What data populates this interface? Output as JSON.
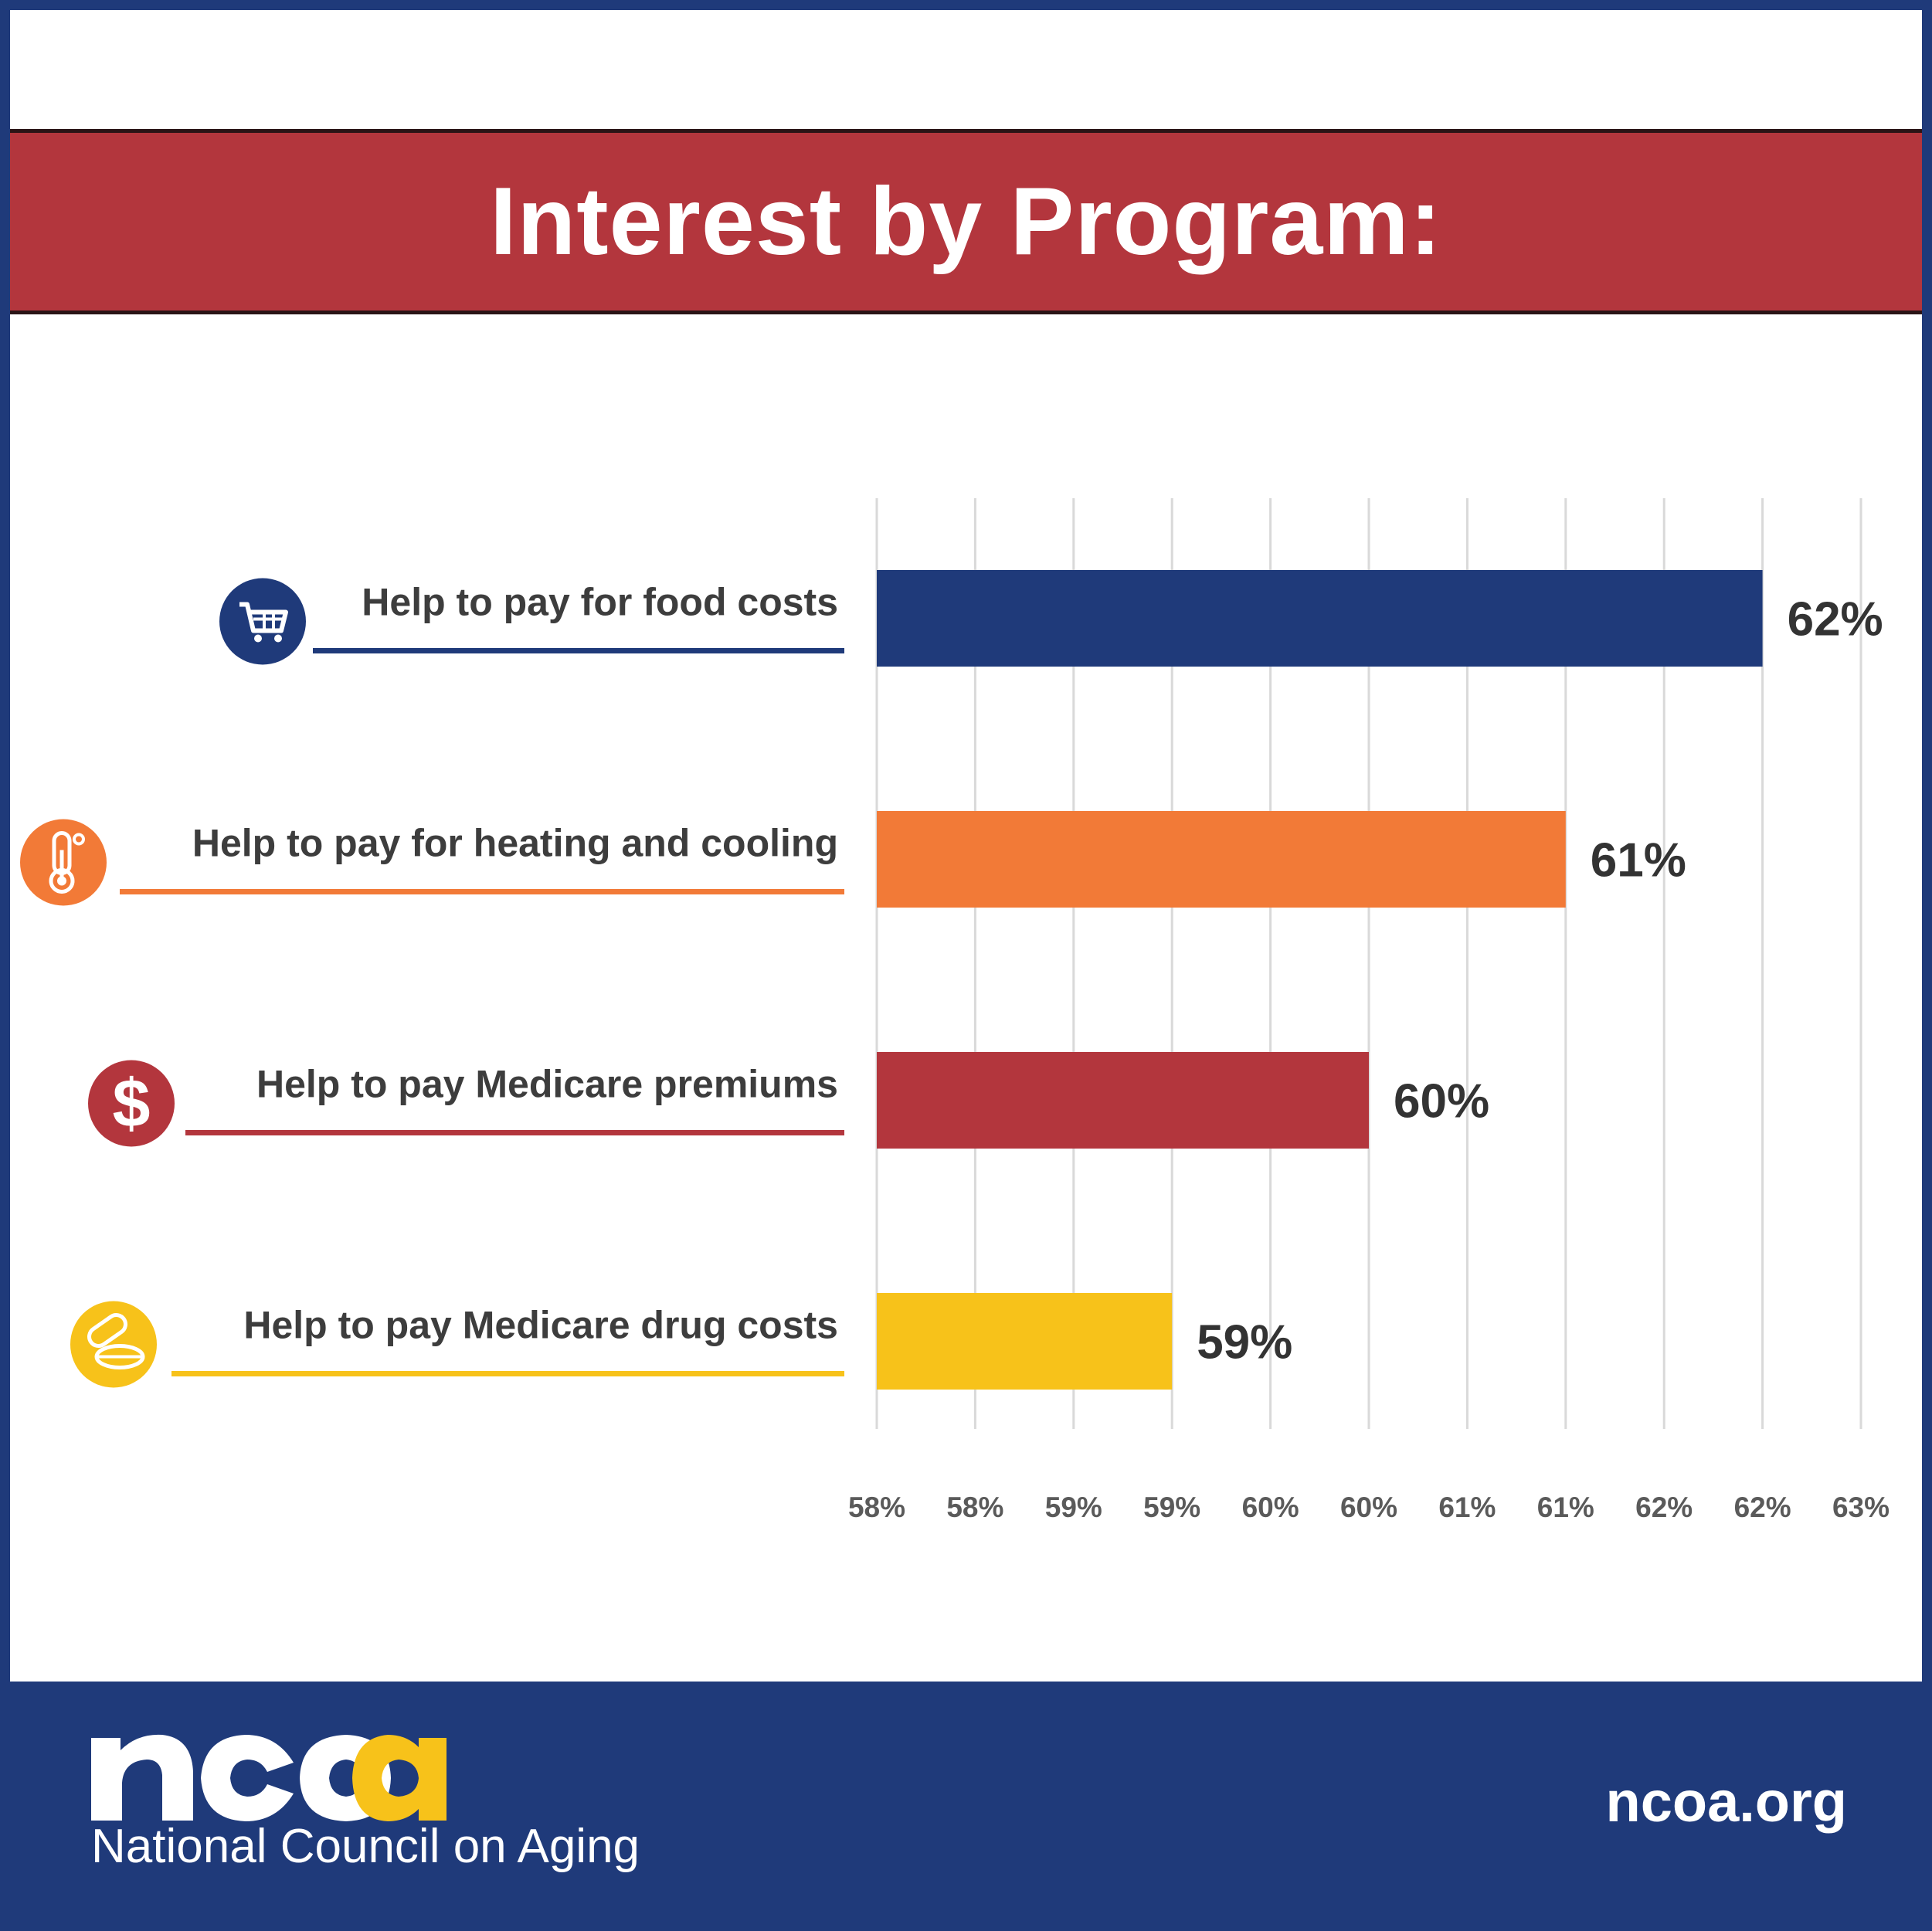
{
  "title": "Interest by Program:",
  "chart_data": {
    "type": "bar",
    "orientation": "horizontal",
    "categories": [
      "Help to pay for food costs",
      "Help to pay for heating and cooling",
      "Help to pay Medicare premiums",
      "Help to pay Medicare drug costs"
    ],
    "values": [
      62,
      61,
      60,
      59
    ],
    "value_labels": [
      "62%",
      "61%",
      "60%",
      "59%"
    ],
    "colors": [
      "#1f3a7a",
      "#f27a37",
      "#b3363d",
      "#f7c21a"
    ],
    "icons": [
      "shopping-cart-icon",
      "thermometer-icon",
      "dollar-icon",
      "pills-icon"
    ],
    "xlim": [
      57.5,
      62.5
    ],
    "x_ticks": [
      57.5,
      58,
      58.5,
      59,
      59.5,
      60,
      60.5,
      61,
      61.5,
      62,
      62.5
    ],
    "x_tick_labels": [
      "58%",
      "58%",
      "59%",
      "59%",
      "60%",
      "60%",
      "61%",
      "61%",
      "62%",
      "62%",
      "63%"
    ],
    "grid": "vertical",
    "title": "Interest by Program:"
  },
  "footer": {
    "logo_word": "ncoa",
    "logo_subtitle": "National Council on Aging",
    "url": "ncoa.org"
  }
}
